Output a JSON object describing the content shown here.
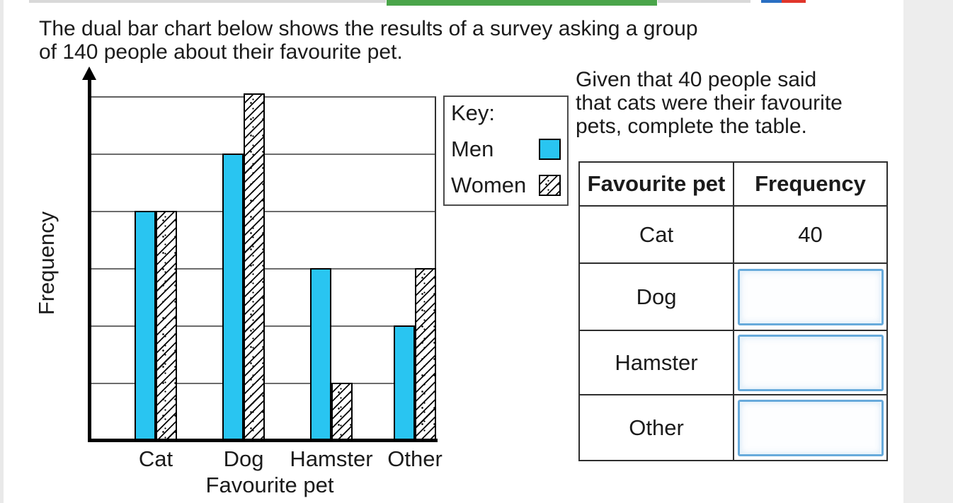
{
  "intro": {
    "lines": [
      "The dual bar chart below shows the results of a survey asking a group",
      "of 140 people about their favourite pet."
    ]
  },
  "chart_data": {
    "type": "bar",
    "categories": [
      "Cat",
      "Dog",
      "Hamster",
      "Other"
    ],
    "series": [
      {
        "name": "Men",
        "values": [
          20,
          25,
          15,
          10
        ],
        "style": "solid",
        "color": "#29c5f1"
      },
      {
        "name": "Women",
        "values": [
          20,
          30,
          5,
          15
        ],
        "style": "diagonal-hatch",
        "color": "#ffffff"
      }
    ],
    "xlabel": "Favourite pet",
    "ylabel": "Frequency",
    "ylim": [
      0,
      30
    ],
    "gridline_step": 5,
    "grid": "horizontal",
    "y_tick_labels_visible": false,
    "legend": {
      "title": "Key:",
      "position": "right-of-chart"
    }
  },
  "question": {
    "lines": [
      "Given that 40 people said",
      "that cats were their favourite",
      "pets, complete the table."
    ]
  },
  "table": {
    "headers": [
      "Favourite pet",
      "Frequency"
    ],
    "rows": [
      {
        "pet": "Cat",
        "frequency": "40",
        "has_input": false
      },
      {
        "pet": "Dog",
        "frequency": "",
        "has_input": true
      },
      {
        "pet": "Hamster",
        "frequency": "",
        "has_input": true
      },
      {
        "pet": "Other",
        "frequency": "",
        "has_input": true
      }
    ]
  },
  "colors": {
    "men_bar": "#29c5f1",
    "input_border": "#67aadb",
    "toolbar_green": "#4aa54a",
    "toolbar_gray": "#d9d9d9",
    "logo_blue": "#2a6fc2",
    "logo_red": "#e0352b"
  }
}
